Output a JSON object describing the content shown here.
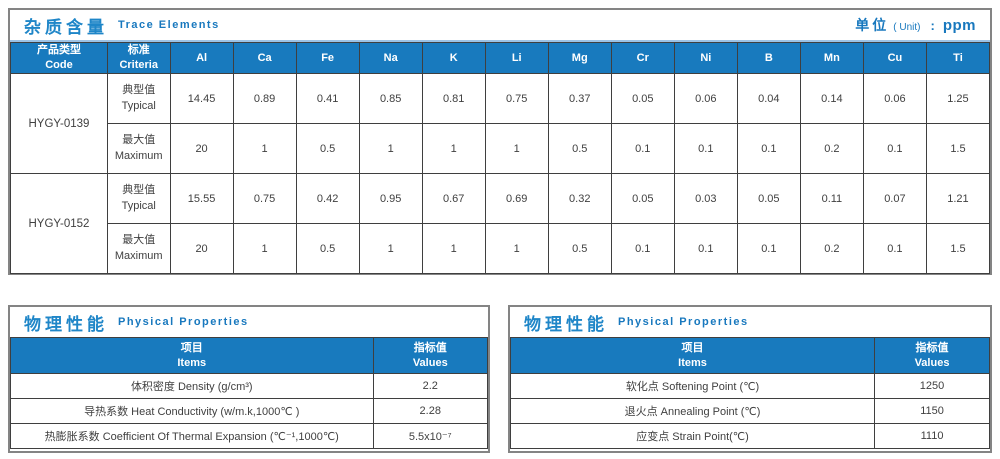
{
  "colors": {
    "accent_blue": "#1878be",
    "header_bg": "#187abe",
    "grid_line": "#3f3f3f",
    "frame_gray": "#848484",
    "divider_light_blue": "#9dc3e6",
    "body_text": "#404040"
  },
  "trace": {
    "title_zh": "杂质含量",
    "title_en": "Trace Elements",
    "unit_zh": "单位",
    "unit_paren": "( Unit)",
    "unit_colon": ":",
    "unit_value": "ppm",
    "col_code_zh": "产品类型",
    "col_code_en": "Code",
    "col_criteria_zh": "标准",
    "col_criteria_en": "Criteria",
    "elements": [
      "Al",
      "Ca",
      "Fe",
      "Na",
      "K",
      "Li",
      "Mg",
      "Cr",
      "Ni",
      "B",
      "Mn",
      "Cu",
      "Ti"
    ],
    "row_labels": {
      "typical_zh": "典型值",
      "typical_en": "Typical",
      "maximum_zh": "最大值",
      "maximum_en": "Maximum"
    },
    "products": [
      {
        "code": "HYGY-0139",
        "typical": [
          "14.45",
          "0.89",
          "0.41",
          "0.85",
          "0.81",
          "0.75",
          "0.37",
          "0.05",
          "0.06",
          "0.04",
          "0.14",
          "0.06",
          "1.25"
        ],
        "maximum": [
          "20",
          "1",
          "0.5",
          "1",
          "1",
          "1",
          "0.5",
          "0.1",
          "0.1",
          "0.1",
          "0.2",
          "0.1",
          "1.5"
        ]
      },
      {
        "code": "HYGY-0152",
        "typical": [
          "15.55",
          "0.75",
          "0.42",
          "0.95",
          "0.67",
          "0.69",
          "0.32",
          "0.05",
          "0.03",
          "0.05",
          "0.11",
          "0.07",
          "1.21"
        ],
        "maximum": [
          "20",
          "1",
          "0.5",
          "1",
          "1",
          "1",
          "0.5",
          "0.1",
          "0.1",
          "0.1",
          "0.2",
          "0.1",
          "1.5"
        ]
      }
    ]
  },
  "physical_left": {
    "title_zh": "物理性能",
    "title_en": "Physical Properties",
    "col_items_zh": "项目",
    "col_items_en": "Items",
    "col_values_zh": "指标值",
    "col_values_en": "Values",
    "rows": [
      {
        "item": "体积密度 Density (g/cm³)",
        "value": "2.2"
      },
      {
        "item": "导热系数 Heat Conductivity (w/m.k,1000℃ )",
        "value": "2.28"
      },
      {
        "item": "热膨胀系数 Coefficient Of Thermal Expansion (℃⁻¹,1000℃)",
        "value": "5.5x10⁻⁷"
      }
    ]
  },
  "physical_right": {
    "title_zh": "物理性能",
    "title_en": "Physical Properties",
    "col_items_zh": "项目",
    "col_items_en": "Items",
    "col_values_zh": "指标值",
    "col_values_en": "Values",
    "rows": [
      {
        "item": "软化点 Softening Point (℃)",
        "value": "1250"
      },
      {
        "item": "退火点 Annealing Point (℃)",
        "value": "1150"
      },
      {
        "item": "应变点 Strain Point(℃)",
        "value": "1110"
      }
    ]
  }
}
